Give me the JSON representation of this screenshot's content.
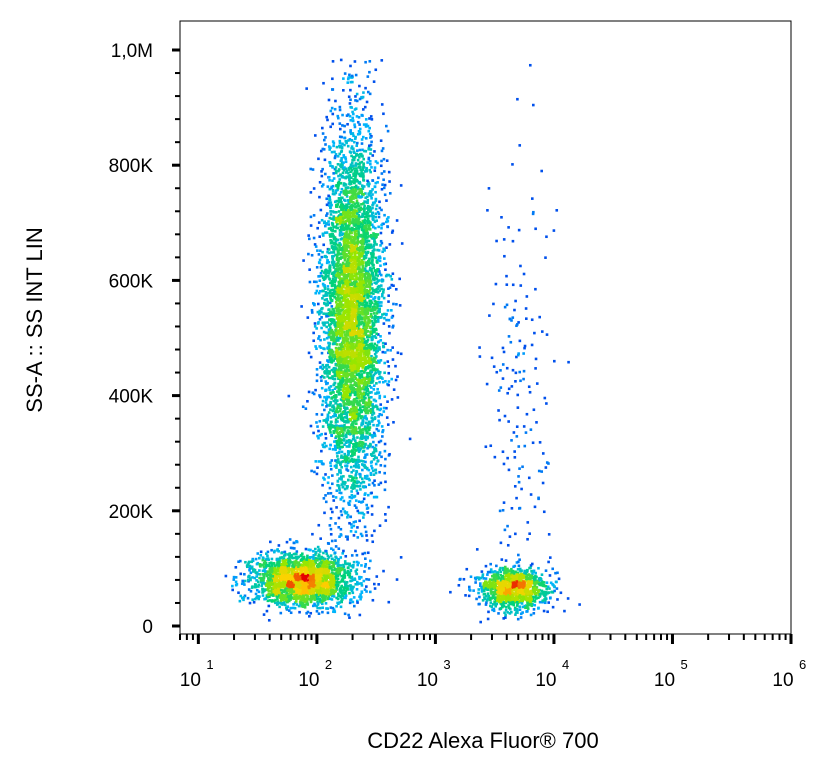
{
  "chart_data": {
    "type": "scatter",
    "subtype": "flow-cytometry-density-dot-plot",
    "xlabel": "CD22 Alexa Fluor® 700",
    "ylabel": "SS-A :: SS INT LIN",
    "x_scale": "log (biexponential display)",
    "y_scale": "linear",
    "xlim": [
      7,
      1000000
    ],
    "ylim": [
      0,
      1000000
    ],
    "x_ticks": [
      {
        "value": 10,
        "base": "10",
        "exp": "1"
      },
      {
        "value": 100,
        "base": "10",
        "exp": "2"
      },
      {
        "value": 1000,
        "base": "10",
        "exp": "3"
      },
      {
        "value": 10000,
        "base": "10",
        "exp": "4"
      },
      {
        "value": 100000,
        "base": "10",
        "exp": "5"
      },
      {
        "value": 1000000,
        "base": "10",
        "exp": "6"
      }
    ],
    "y_ticks": [
      {
        "value": 0,
        "label": "0"
      },
      {
        "value": 200000,
        "label": "200K"
      },
      {
        "value": 400000,
        "label": "400K"
      },
      {
        "value": 600000,
        "label": "600K"
      },
      {
        "value": 800000,
        "label": "800K"
      },
      {
        "value": 1000000,
        "label": "1,0M"
      }
    ],
    "color_scale": "density: blue (low) → cyan → green → yellow → red (high)",
    "grid": false,
    "legend": "none",
    "populations": [
      {
        "center_x": 200,
        "center_y": 540000,
        "spread_log10_x": 0.13,
        "spread_y": 160000,
        "share": 0.58
      },
      {
        "center_x": 75,
        "center_y": 80000,
        "spread_log10_x": 0.22,
        "spread_y": 22000,
        "share": 0.24
      },
      {
        "center_x": 4500,
        "center_y": 65000,
        "spread_log10_x": 0.15,
        "spread_y": 18000,
        "share": 0.12
      },
      {
        "center_x": 5000,
        "center_y": 350000,
        "spread_log10_x": 0.15,
        "spread_y": 220000,
        "share": 0.02
      }
    ]
  }
}
